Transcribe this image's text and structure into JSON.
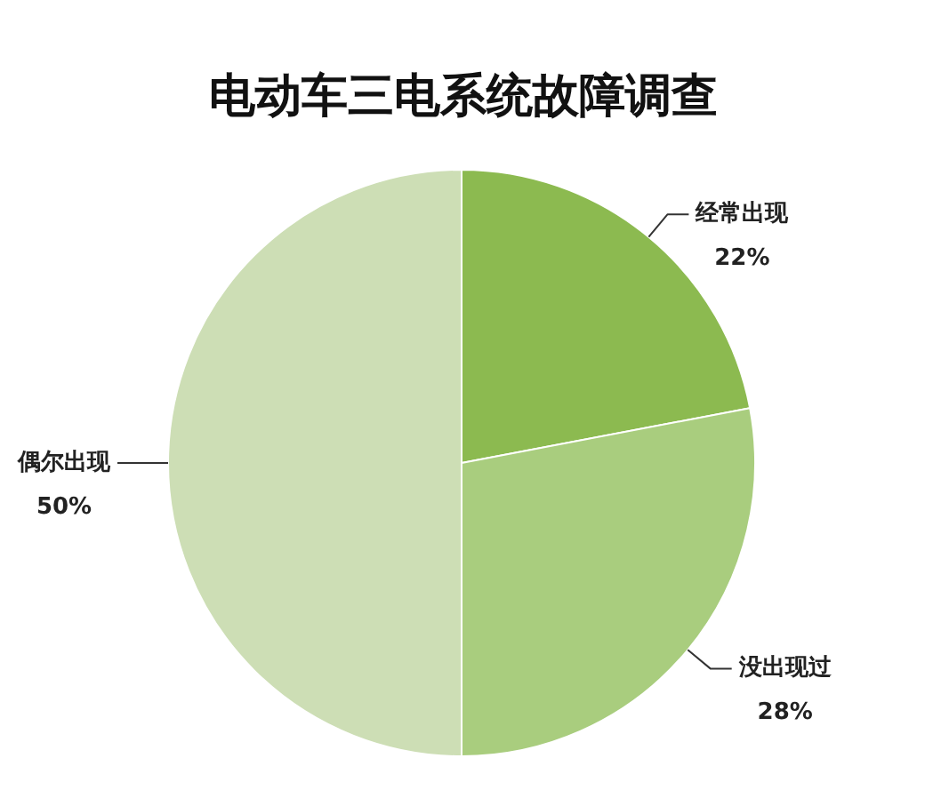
{
  "chart_data": {
    "type": "pie",
    "title": "电动车三电系统故障调查",
    "categories": [
      "经常出现",
      "没出现过",
      "偶尔出现"
    ],
    "values": [
      22,
      28,
      50
    ],
    "value_labels": [
      "22%",
      "28%",
      "50%"
    ],
    "colors": [
      "#8cba50",
      "#a9cd7e",
      "#cddeb5"
    ]
  }
}
